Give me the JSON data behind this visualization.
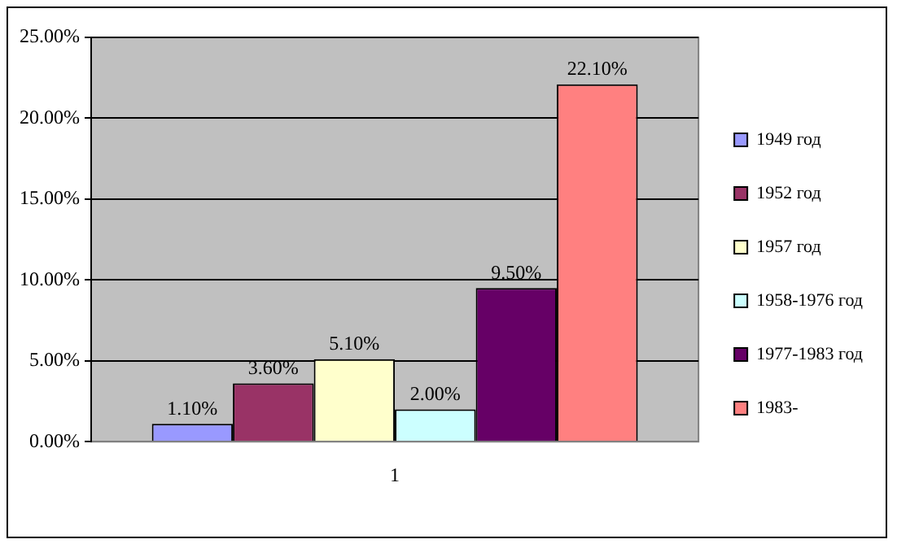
{
  "chart_data": {
    "type": "bar",
    "categories": [
      "1"
    ],
    "series": [
      {
        "name": "1949 год",
        "color": "#9999ff",
        "values": [
          1.1
        ],
        "value_labels": [
          "1.10%"
        ]
      },
      {
        "name": "1952 год",
        "color": "#993366",
        "values": [
          3.6
        ],
        "value_labels": [
          "3.60%"
        ]
      },
      {
        "name": "1957 год",
        "color": "#ffffcc",
        "values": [
          5.1
        ],
        "value_labels": [
          "5.10%"
        ]
      },
      {
        "name": "1958-1976 год",
        "color": "#ccffff",
        "values": [
          2.0
        ],
        "value_labels": [
          "2.00%"
        ]
      },
      {
        "name": "1977-1983 год",
        "color": "#660066",
        "values": [
          9.5
        ],
        "value_labels": [
          "9.50%"
        ]
      },
      {
        "name": "1983-",
        "color": "#ff8080",
        "values": [
          22.1
        ],
        "value_labels": [
          "22.10%"
        ]
      }
    ],
    "ylim": [
      0,
      25
    ],
    "yticks": [
      {
        "value": 0,
        "label": "0.00%"
      },
      {
        "value": 5,
        "label": "5.00%"
      },
      {
        "value": 10,
        "label": "10.00%"
      },
      {
        "value": 15,
        "label": "15.00%"
      },
      {
        "value": 20,
        "label": "20.00%"
      },
      {
        "value": 25,
        "label": "25.00%"
      }
    ],
    "grid": "y",
    "legend": "right"
  }
}
